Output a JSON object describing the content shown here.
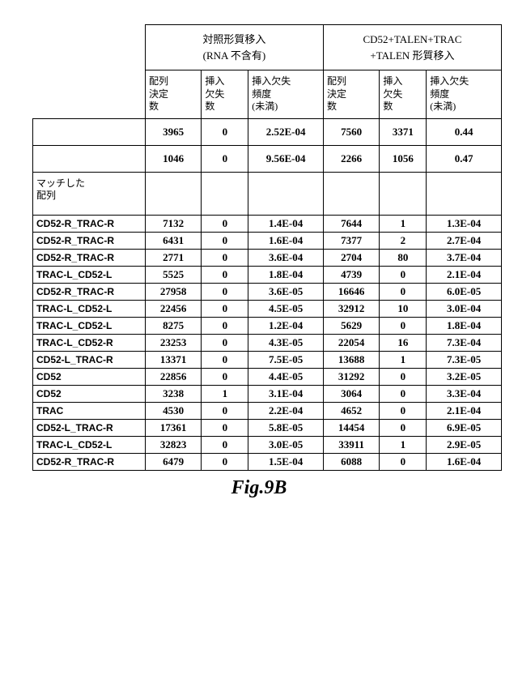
{
  "headers": {
    "group1_line1": "対照形質移入",
    "group1_line2": "(RNA 不含有)",
    "group2_line1": "CD52+TALEN+TRAC",
    "group2_line2": "+TALEN 形質移入",
    "sub_seq": "配列\n決定\n数",
    "sub_indel": "挿入\n欠失\n数",
    "sub_freq": "挿入欠失\n頻度\n(未満)"
  },
  "summary": [
    {
      "label": "",
      "g1": {
        "seq": "3965",
        "indel": "0",
        "freq": "2.52E-04"
      },
      "g2": {
        "seq": "7560",
        "indel": "3371",
        "freq": "0.44"
      }
    },
    {
      "label": "",
      "g1": {
        "seq": "1046",
        "indel": "0",
        "freq": "9.56E-04"
      },
      "g2": {
        "seq": "2266",
        "indel": "1056",
        "freq": "0.47"
      }
    }
  ],
  "match_label": "マッチした\n配列",
  "rows": [
    {
      "label": "CD52-R_TRAC-R",
      "g1": {
        "seq": "7132",
        "indel": "0",
        "freq": "1.4E-04"
      },
      "g2": {
        "seq": "7644",
        "indel": "1",
        "freq": "1.3E-04"
      }
    },
    {
      "label": "CD52-R_TRAC-R",
      "g1": {
        "seq": "6431",
        "indel": "0",
        "freq": "1.6E-04"
      },
      "g2": {
        "seq": "7377",
        "indel": "2",
        "freq": "2.7E-04"
      }
    },
    {
      "label": "CD52-R_TRAC-R",
      "g1": {
        "seq": "2771",
        "indel": "0",
        "freq": "3.6E-04"
      },
      "g2": {
        "seq": "2704",
        "indel": "80",
        "freq": "3.7E-04"
      }
    },
    {
      "label": "TRAC-L_CD52-L",
      "g1": {
        "seq": "5525",
        "indel": "0",
        "freq": "1.8E-04"
      },
      "g2": {
        "seq": "4739",
        "indel": "0",
        "freq": "2.1E-04"
      }
    },
    {
      "label": "CD52-R_TRAC-R",
      "g1": {
        "seq": "27958",
        "indel": "0",
        "freq": "3.6E-05"
      },
      "g2": {
        "seq": "16646",
        "indel": "0",
        "freq": "6.0E-05"
      }
    },
    {
      "label": "TRAC-L_CD52-L",
      "g1": {
        "seq": "22456",
        "indel": "0",
        "freq": "4.5E-05"
      },
      "g2": {
        "seq": "32912",
        "indel": "10",
        "freq": "3.0E-04"
      }
    },
    {
      "label": "TRAC-L_CD52-L",
      "g1": {
        "seq": "8275",
        "indel": "0",
        "freq": "1.2E-04"
      },
      "g2": {
        "seq": "5629",
        "indel": "0",
        "freq": "1.8E-04"
      }
    },
    {
      "label": "TRAC-L_CD52-R",
      "g1": {
        "seq": "23253",
        "indel": "0",
        "freq": "4.3E-05"
      },
      "g2": {
        "seq": "22054",
        "indel": "16",
        "freq": "7.3E-04"
      }
    },
    {
      "label": "CD52-L_TRAC-R",
      "g1": {
        "seq": "13371",
        "indel": "0",
        "freq": "7.5E-05"
      },
      "g2": {
        "seq": "13688",
        "indel": "1",
        "freq": "7.3E-05"
      }
    },
    {
      "label": "CD52",
      "g1": {
        "seq": "22856",
        "indel": "0",
        "freq": "4.4E-05"
      },
      "g2": {
        "seq": "31292",
        "indel": "0",
        "freq": "3.2E-05"
      }
    },
    {
      "label": "CD52",
      "g1": {
        "seq": "3238",
        "indel": "1",
        "freq": "3.1E-04"
      },
      "g2": {
        "seq": "3064",
        "indel": "0",
        "freq": "3.3E-04"
      }
    },
    {
      "label": "TRAC",
      "g1": {
        "seq": "4530",
        "indel": "0",
        "freq": "2.2E-04"
      },
      "g2": {
        "seq": "4652",
        "indel": "0",
        "freq": "2.1E-04"
      }
    },
    {
      "label": "CD52-L_TRAC-R",
      "g1": {
        "seq": "17361",
        "indel": "0",
        "freq": "5.8E-05"
      },
      "g2": {
        "seq": "14454",
        "indel": "0",
        "freq": "6.9E-05"
      }
    },
    {
      "label": "TRAC-L_CD52-L",
      "g1": {
        "seq": "32823",
        "indel": "0",
        "freq": "3.0E-05"
      },
      "g2": {
        "seq": "33911",
        "indel": "1",
        "freq": "2.9E-05"
      }
    },
    {
      "label": "CD52-R_TRAC-R",
      "g1": {
        "seq": "6479",
        "indel": "0",
        "freq": "1.5E-04"
      },
      "g2": {
        "seq": "6088",
        "indel": "0",
        "freq": "1.6E-04"
      }
    }
  ],
  "caption": "Fig.9B",
  "style": {
    "border_color": "#000000",
    "background": "#ffffff",
    "label_font": "Arial",
    "data_font": "Times New Roman",
    "jp_font": "MS Mincho",
    "data_fontsize_pt": 13,
    "label_fontsize_pt": 12,
    "caption_fontsize_pt": 24
  }
}
